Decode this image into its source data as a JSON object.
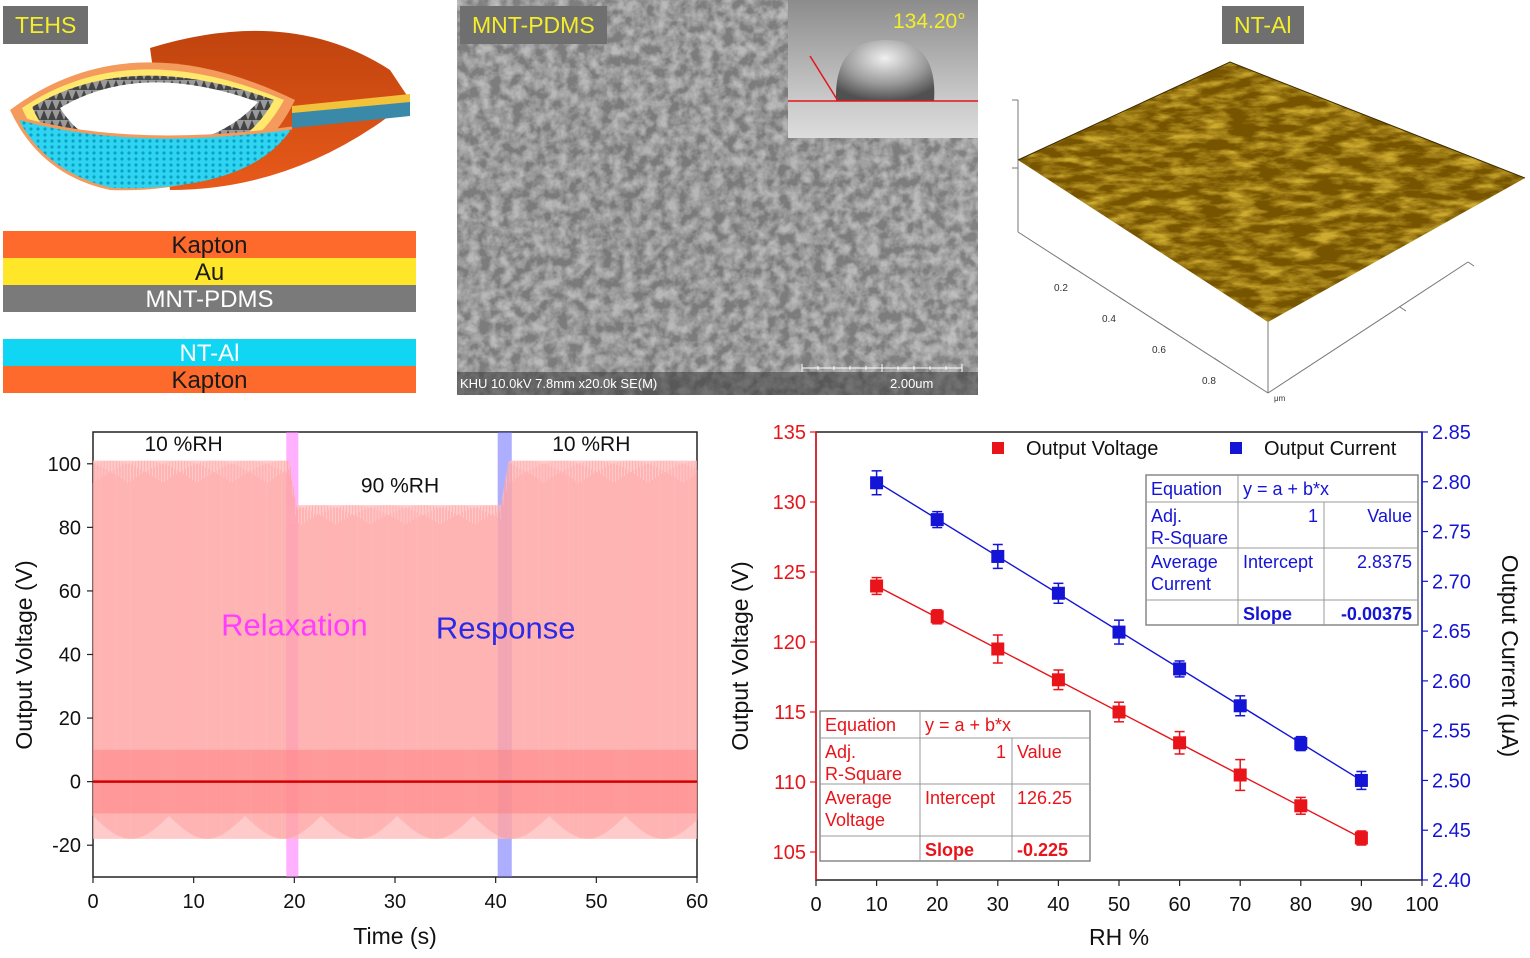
{
  "top": {
    "tehs": {
      "tag": "TEHS",
      "layers_top": [
        {
          "label": "Kapton",
          "color": "#fd6a2b",
          "text_color": "#1a1a1a"
        },
        {
          "label": "Au",
          "color": "#ffe629",
          "text_color": "#1a1a1a"
        },
        {
          "label": "MNT-PDMS",
          "color": "#7a7a7a",
          "text_color": "#ffffff"
        }
      ],
      "layers_bottom": [
        {
          "label": "NT-Al",
          "color": "#10d6f4",
          "text_color": "#ffffff"
        },
        {
          "label": "Kapton",
          "color": "#fd6a2b",
          "text_color": "#1a1a1a"
        }
      ]
    },
    "sem": {
      "tag": "MNT-PDMS",
      "contact_angle": "134.20°",
      "caption": "KHU 10.0kV 7.8mm x20.0k SE(M)",
      "scale": "2.00um"
    },
    "afm": {
      "tag": "NT-Al",
      "axis_ticks": [
        "0.2",
        "0.4",
        "0.6",
        "0.8"
      ],
      "unit": "μm"
    }
  },
  "chart_data": [
    {
      "type": "line",
      "xlabel": "Time (s)",
      "ylabel": "Output Voltage (V)",
      "xlim": [
        0,
        60
      ],
      "ylim": [
        -30,
        110
      ],
      "xticks": [
        0,
        10,
        20,
        30,
        40,
        50,
        60
      ],
      "yticks": [
        -20,
        0,
        20,
        40,
        60,
        80,
        100
      ],
      "series": [
        {
          "peak_envelope": {
            "x": [
              0,
              19.5,
              20.2,
              40.5,
              41.3,
              60
            ],
            "y": [
              101,
              101,
              87,
              87,
              101,
              101
            ]
          },
          "trough": -18,
          "baseline": 0
        }
      ],
      "annotations": [
        {
          "text": "10 %RH",
          "x": 9,
          "y": 104
        },
        {
          "text": "90 %RH",
          "x": 30.5,
          "y": 91
        },
        {
          "text": "10 %RH",
          "x": 49.5,
          "y": 104
        },
        {
          "text": "Relaxation",
          "x": 20,
          "y": 46,
          "color": "#ff3cff"
        },
        {
          "text": "Response",
          "x": 41,
          "y": 45,
          "color": "#2a2ae8"
        }
      ],
      "bands": [
        {
          "x": [
            19.2,
            20.4
          ],
          "color": "#ff70ff"
        },
        {
          "x": [
            40.2,
            41.6
          ],
          "color": "#6b6bff"
        }
      ]
    },
    {
      "type": "scatter",
      "xlabel": "RH %",
      "ylabel": "Output Voltage (V)",
      "y2label": "Output Current (μA)",
      "xlim": [
        0,
        100
      ],
      "ylim": [
        103,
        135
      ],
      "y2lim": [
        2.4,
        2.85
      ],
      "xticks": [
        0,
        10,
        20,
        30,
        40,
        50,
        60,
        70,
        80,
        90,
        100
      ],
      "yticks": [
        105,
        110,
        115,
        120,
        125,
        130,
        135
      ],
      "y2ticks": [
        "2.40",
        "2.45",
        "2.50",
        "2.55",
        "2.60",
        "2.65",
        "2.70",
        "2.75",
        "2.80",
        "2.85"
      ],
      "legend_position": "top",
      "series": [
        {
          "name": "Output Voltage",
          "color": "#e8141a",
          "axis": "left",
          "x": [
            10,
            20,
            30,
            40,
            50,
            60,
            70,
            80,
            90
          ],
          "y": [
            124.0,
            121.8,
            119.5,
            117.3,
            115.0,
            112.8,
            110.5,
            108.3,
            106.0
          ],
          "err": [
            0.6,
            0.5,
            1.0,
            0.7,
            0.7,
            0.8,
            1.1,
            0.6,
            0.5
          ],
          "fit": {
            "intercept": 126.25,
            "slope": -0.225
          }
        },
        {
          "name": "Output Current",
          "color": "#1414d6",
          "axis": "right",
          "x": [
            10,
            20,
            30,
            40,
            50,
            60,
            70,
            80,
            90
          ],
          "y": [
            2.799,
            2.762,
            2.725,
            2.688,
            2.649,
            2.612,
            2.575,
            2.537,
            2.5
          ],
          "err": [
            0.012,
            0.008,
            0.012,
            0.01,
            0.012,
            0.008,
            0.01,
            0.007,
            0.009
          ],
          "fit": {
            "intercept": 2.8375,
            "slope": -0.00375
          }
        }
      ],
      "tables": [
        {
          "color": "#1414d6",
          "rows": [
            [
              "Equation",
              "y = a + b*x",
              ""
            ],
            [
              "Adj.\nR-Square",
              "1",
              "Value"
            ],
            [
              "Average\nCurrent",
              "Intercept",
              "2.8375"
            ],
            [
              "",
              "Slope",
              "-0.00375"
            ]
          ]
        },
        {
          "color": "#e8141a",
          "rows": [
            [
              "Equation",
              "y = a + b*x",
              ""
            ],
            [
              "Adj.\nR-Square",
              "1",
              "Value"
            ],
            [
              "Average\nVoltage",
              "Intercept",
              "126.25"
            ],
            [
              "",
              "Slope",
              "-0.225"
            ]
          ]
        }
      ]
    }
  ]
}
